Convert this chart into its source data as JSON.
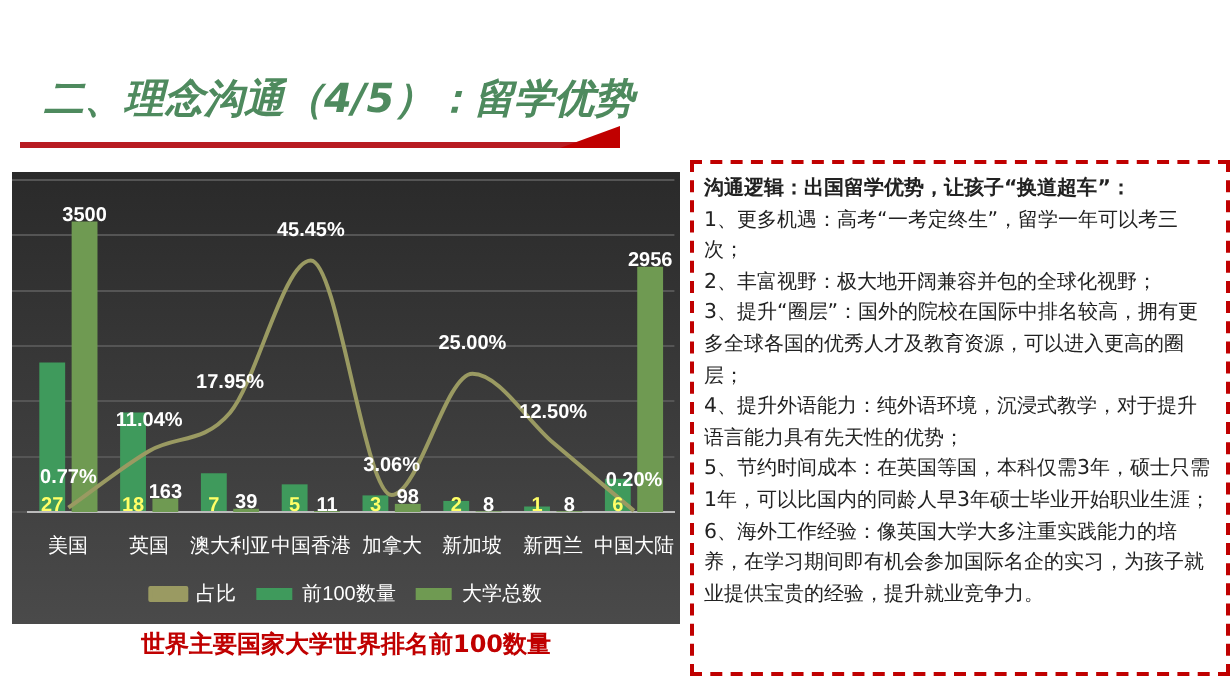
{
  "chart_data": {
    "type": "bar",
    "title": "二、理念沟通（4/5）：留学优势",
    "subtitle": "世界主要国家大学世界排名前100数量",
    "categories": [
      "美国",
      "英国",
      "澳大利亚",
      "中国香港",
      "加拿大",
      "新加坡",
      "新西兰",
      "中国大陆"
    ],
    "series": [
      {
        "name": "前100数量",
        "color": "#3f9a5c",
        "values": [
          27,
          18,
          7,
          5,
          3,
          2,
          1,
          6
        ]
      },
      {
        "name": "大学总数",
        "color": "#6f9a52",
        "axis": "y2",
        "values": [
          3500,
          163,
          39,
          11,
          98,
          8,
          8,
          2956
        ]
      },
      {
        "name": "占比",
        "type": "line",
        "color": "#9a9a62",
        "axis": "y",
        "values": [
          0.77,
          11.04,
          17.95,
          45.45,
          3.06,
          25.0,
          12.5,
          0.2
        ],
        "value_labels": [
          "0.77%",
          "11.04%",
          "17.95%",
          "45.45%",
          "3.06%",
          "25.00%",
          "12.50%",
          "0.20%"
        ]
      }
    ],
    "tick_labels": "x",
    "data_labels": true,
    "legend": "bottom",
    "grid": "y",
    "annotations": [
      "沟通逻辑：出国留学优势，让孩子“换道超车”：",
      "1、更多机遇：高考“一考定终生”，留学一年可以考三次；",
      "2、丰富视野：极大地开阔兼容并包的全球化视野；",
      "3、提升“圈层”：国外的院校在国际中排名较高，拥有更多全球各国的优秀人才及教育资源，可以进入更高的圈层；",
      "4、提升外语能力：纯外语环境，沉浸式教学，对于提升语言能力具有先天性的优势；",
      "5、节约时间成本：在英国等国，本科仅需3年，硕士只需1年，可以比国内的同龄人早3年硕士毕业开始职业生涯；",
      "6、海外工作经验：像英国大学大多注重实践能力的培养，在学习期间即有机会参加国际名企的实习，为孩子就业提供宝贵的经验，提升就业竞争力。"
    ]
  }
}
